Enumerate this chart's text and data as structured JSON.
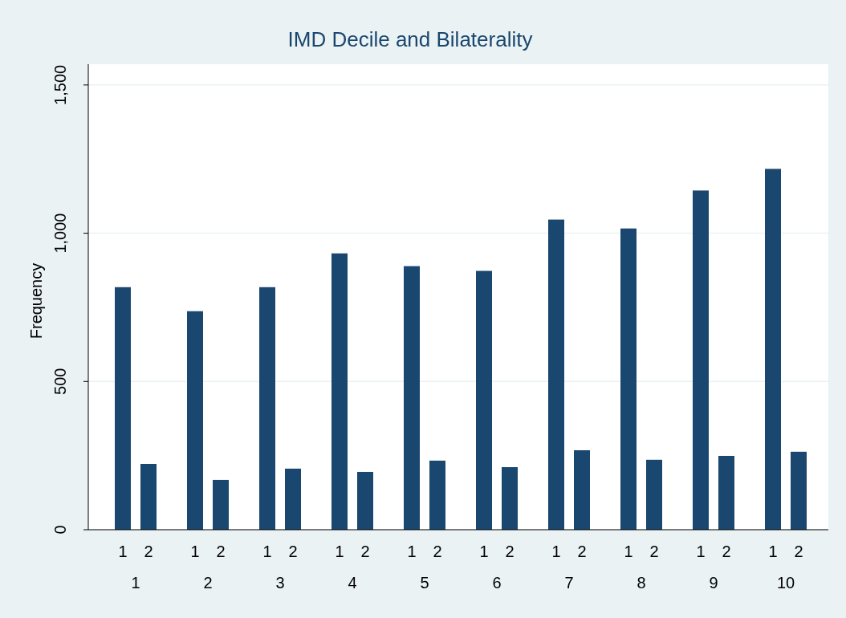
{
  "chart_data": {
    "type": "bar",
    "title": "IMD Decile and Bilaterality",
    "ylabel": "Frequency",
    "categories": [
      "1",
      "2",
      "3",
      "4",
      "5",
      "6",
      "7",
      "8",
      "9",
      "10"
    ],
    "series": [
      {
        "name": "1",
        "color": "#1a476f",
        "values": [
          818,
          737,
          818,
          932,
          889,
          873,
          1046,
          1016,
          1144,
          1217
        ]
      },
      {
        "name": "2",
        "color": "#1a476f",
        "values": [
          222,
          168,
          206,
          195,
          233,
          211,
          268,
          236,
          249,
          263
        ]
      }
    ],
    "ylim": [
      0,
      1570
    ],
    "yticks": [
      0,
      500,
      {
        "value": 1000,
        "label": "1,000"
      },
      {
        "value": 1500,
        "label": "1,500"
      }
    ],
    "grid": "y"
  }
}
